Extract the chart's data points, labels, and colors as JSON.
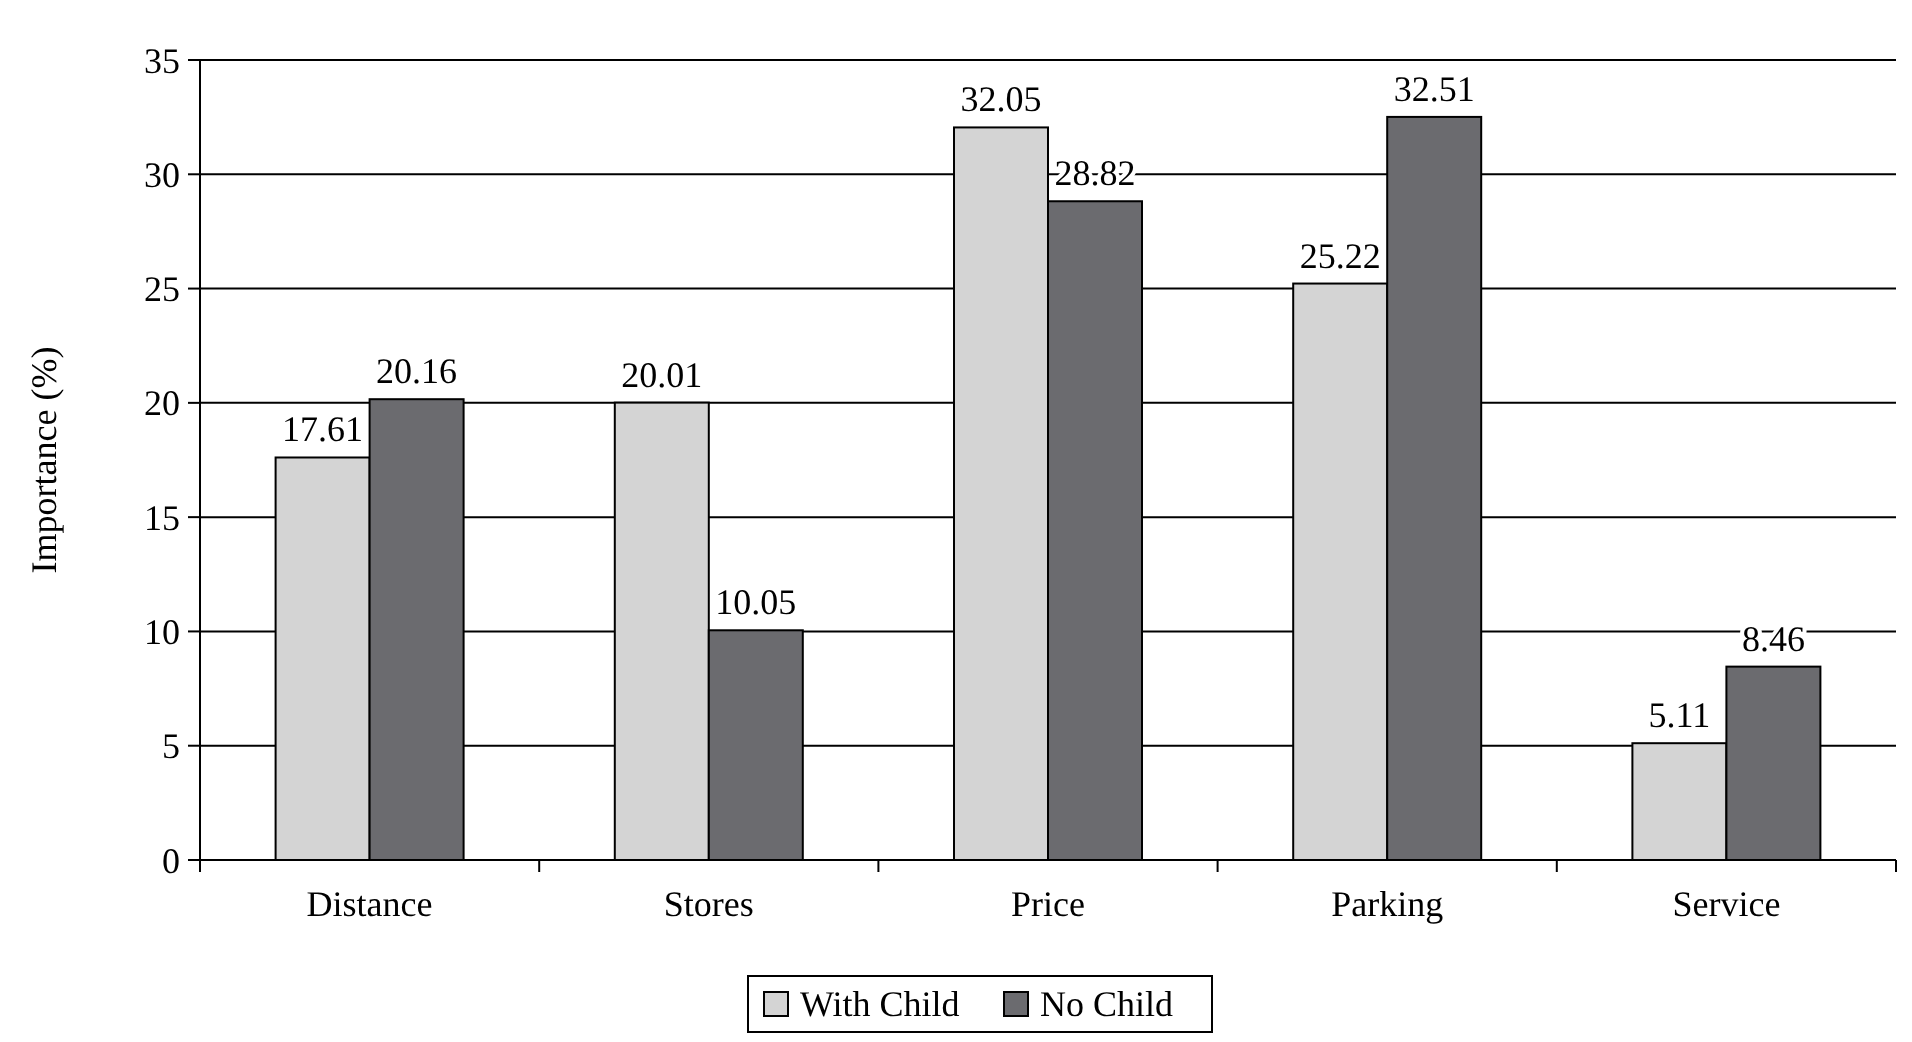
{
  "chart_data": {
    "type": "bar",
    "ylabel": "Importance (%)",
    "categories": [
      "Distance",
      "Stores",
      "Price",
      "Parking",
      "Service"
    ],
    "series": [
      {
        "name": "With Child",
        "color": "#d4d4d4",
        "values": [
          17.61,
          20.01,
          32.05,
          25.22,
          5.11
        ]
      },
      {
        "name": "No Child",
        "color": "#6b6b6f",
        "values": [
          20.16,
          10.05,
          28.82,
          32.51,
          8.46
        ]
      }
    ],
    "ylim": [
      0,
      35
    ],
    "yticks": [
      0,
      5,
      10,
      15,
      20,
      25,
      30,
      35
    ],
    "grid": "y",
    "legend": "bottom",
    "data_labels": true
  }
}
